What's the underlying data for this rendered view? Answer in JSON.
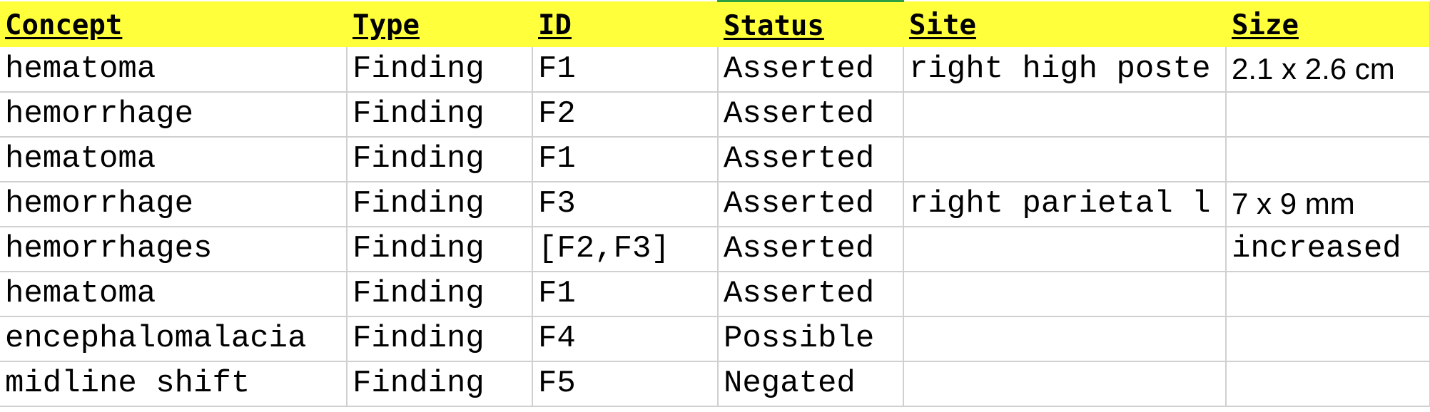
{
  "colors": {
    "header_bg": "#ffff3c",
    "grid_line": "#d0d0d0",
    "active_column_marker": "#2ea043"
  },
  "table": {
    "headers": [
      "Concept",
      "Type",
      "ID",
      "Status",
      "Site",
      "Size"
    ],
    "rows": [
      [
        "hematoma",
        "Finding",
        "F1",
        "Asserted",
        "right high poste",
        "2.1 x 2.6 cm"
      ],
      [
        "hemorrhage",
        "Finding",
        "F2",
        "Asserted",
        "",
        ""
      ],
      [
        "hematoma",
        "Finding",
        "F1",
        "Asserted",
        "",
        ""
      ],
      [
        "hemorrhage",
        "Finding",
        "F3",
        "Asserted",
        "right parietal l",
        "7 x 9 mm"
      ],
      [
        "hemorrhages",
        "Finding",
        "[F2,F3]",
        "Asserted",
        "",
        "increased"
      ],
      [
        "hematoma",
        "Finding",
        "F1",
        "Asserted",
        "",
        ""
      ],
      [
        "encephalomalacia",
        "Finding",
        "F4",
        "Possible",
        "",
        ""
      ],
      [
        "midline shift",
        "Finding",
        "F5",
        "Negated",
        "",
        ""
      ]
    ]
  }
}
